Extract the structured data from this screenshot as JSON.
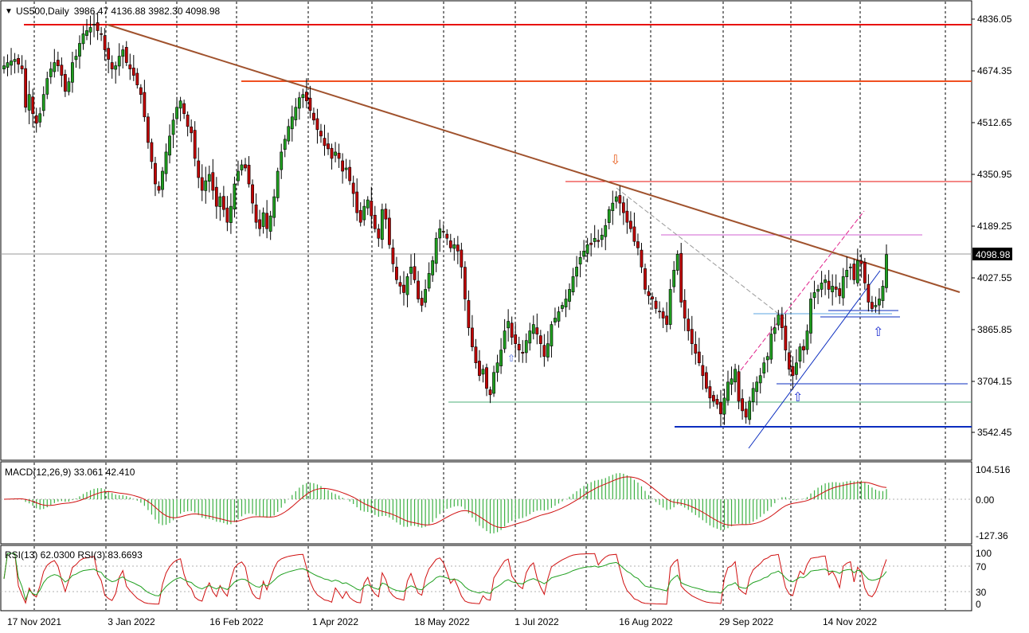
{
  "header": {
    "symbol": "US500,Daily",
    "ohlc": "3986.47 4136.88 3982.30 4098.98"
  },
  "price_axis": {
    "ticks": [
      "4836.05",
      "4674.35",
      "4512.65",
      "4350.95",
      "4189.25",
      "4027.55",
      "3865.85",
      "3704.15",
      "3542.45"
    ],
    "current_price": "4098.98"
  },
  "macd": {
    "label": "MACD(12,26,9) 33.061 42.410",
    "ticks": [
      "104.516",
      "0.00",
      "-127.36"
    ]
  },
  "rsi": {
    "label": "RSI(13) 62.0300 RSI(3) 83.6693",
    "ticks": [
      "100",
      "70",
      "30",
      "0"
    ]
  },
  "x_axis": {
    "dates": [
      "17 Nov 2021",
      "3 Jan 2022",
      "16 Feb 2022",
      "1 Apr 2022",
      "18 May 2022",
      "1 Jul 2022",
      "16 Aug 2022",
      "29 Sep 2022",
      "14 Nov 2022"
    ]
  },
  "colors": {
    "bull": "#1f9e1f",
    "bear": "#c00000",
    "resistance": "#e8120c",
    "trendline": "#a0522d",
    "support": "#0b2dbf",
    "green_level": "#4caf7a"
  },
  "chart_data": {
    "type": "candlestick",
    "price_range": [
      3470,
      4900
    ],
    "closes": [
      4690,
      4700,
      4705,
      4710,
      4695,
      4680,
      4560,
      4600,
      4540,
      4510,
      4540,
      4600,
      4650,
      4680,
      4700,
      4690,
      4660,
      4610,
      4640,
      4700,
      4720,
      4760,
      4790,
      4800,
      4810,
      4820,
      4800,
      4790,
      4740,
      4710,
      4680,
      4690,
      4720,
      4740,
      4700,
      4680,
      4660,
      4630,
      4600,
      4530,
      4450,
      4390,
      4320,
      4300,
      4360,
      4420,
      4470,
      4520,
      4560,
      4580,
      4540,
      4500,
      4480,
      4400,
      4340,
      4300,
      4330,
      4350,
      4300,
      4250,
      4280,
      4240,
      4200,
      4250,
      4320,
      4360,
      4380,
      4370,
      4320,
      4260,
      4200,
      4180,
      4230,
      4180,
      4220,
      4280,
      4360,
      4420,
      4460,
      4500,
      4530,
      4560,
      4590,
      4600,
      4580,
      4550,
      4520,
      4490,
      4470,
      4440,
      4430,
      4400,
      4420,
      4400,
      4360,
      4370,
      4330,
      4290,
      4230,
      4200,
      4250,
      4270,
      4220,
      4180,
      4150,
      4240,
      4210,
      4130,
      4070,
      4020,
      4000,
      3980,
      4030,
      4060,
      4020,
      3960,
      3940,
      3990,
      4040,
      4080,
      4150,
      4180,
      4170,
      4150,
      4120,
      4130,
      4110,
      4060,
      3960,
      3870,
      3810,
      3760,
      3720,
      3740,
      3680,
      3660,
      3730,
      3760,
      3800,
      3860,
      3890,
      3840,
      3820,
      3800,
      3790,
      3830,
      3860,
      3880,
      3850,
      3820,
      3780,
      3820,
      3880,
      3900,
      3920,
      3940,
      3960,
      3990,
      4030,
      4060,
      4090,
      4110,
      4130,
      4130,
      4150,
      4140,
      4160,
      4190,
      4240,
      4260,
      4280,
      4260,
      4230,
      4200,
      4180,
      4140,
      4120,
      4060,
      3990,
      3970,
      3960,
      3930,
      3920,
      3900,
      3880,
      3990,
      4050,
      4100,
      3950,
      3900,
      3860,
      3820,
      3790,
      3760,
      3720,
      3680,
      3650,
      3640,
      3630,
      3600,
      3650,
      3700,
      3710,
      3740,
      3640,
      3610,
      3590,
      3640,
      3680,
      3700,
      3720,
      3760,
      3780,
      3850,
      3870,
      3910,
      3870,
      3800,
      3740,
      3720,
      3760,
      3810,
      3800,
      3860,
      3960,
      3980,
      3990,
      4010,
      4020,
      3990,
      4000,
      3990,
      3970,
      4030,
      4050,
      4060,
      4020,
      4080,
      4070,
      4010,
      3950,
      3930,
      3940,
      3960,
      4000,
      4098.98
    ]
  }
}
